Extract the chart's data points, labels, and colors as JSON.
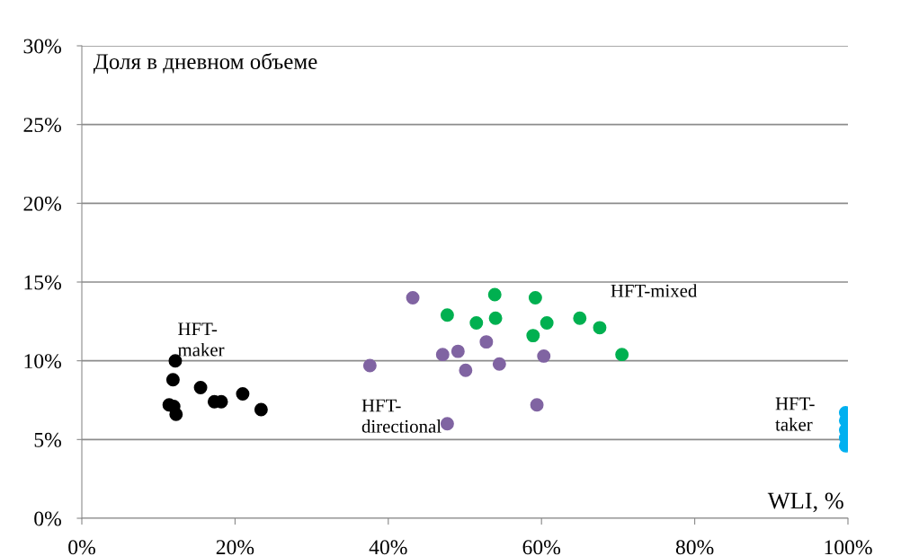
{
  "chart_data": {
    "type": "scatter",
    "ylabel": "Доля в дневном объеме",
    "xlabel": "WLI, %",
    "xlim": [
      0,
      100
    ],
    "xticks": [
      {
        "value": 0,
        "label": "0%"
      },
      {
        "value": 20,
        "label": "20%"
      },
      {
        "value": 40,
        "label": "40%"
      },
      {
        "value": 60,
        "label": "60%"
      },
      {
        "value": 80,
        "label": "80%"
      },
      {
        "value": 100,
        "label": "100%"
      }
    ],
    "ylim": [
      0,
      30
    ],
    "yticks": [
      {
        "value": 0,
        "label": "0%"
      },
      {
        "value": 5,
        "label": "5%"
      },
      {
        "value": 10,
        "label": "10%"
      },
      {
        "value": 15,
        "label": "15%"
      },
      {
        "value": 20,
        "label": "20%"
      },
      {
        "value": 25,
        "label": "25%"
      },
      {
        "value": 30,
        "label": "30%"
      }
    ],
    "grid": "y",
    "marker": "circle",
    "series": [
      {
        "name": "HFT-\nmaker",
        "color": "#000000",
        "x": [
          12.2,
          11.9,
          15.5,
          11.4,
          12.0,
          12.3,
          17.3,
          18.2,
          21.0,
          23.4
        ],
        "values": [
          10.0,
          8.8,
          8.3,
          7.2,
          7.1,
          6.6,
          7.4,
          7.4,
          7.9,
          6.9
        ]
      },
      {
        "name": "HFT-\ndirectional",
        "color": "#8064a2",
        "x": [
          43.2,
          37.6,
          47.1,
          49.1,
          52.8,
          50.1,
          54.5,
          60.3,
          59.4,
          47.7
        ],
        "values": [
          14.0,
          9.7,
          10.4,
          10.6,
          11.2,
          9.4,
          9.8,
          10.3,
          7.2,
          6.0
        ]
      },
      {
        "name": "HFT-mixed",
        "color": "#00b050",
        "x": [
          47.7,
          51.5,
          54.0,
          53.9,
          59.2,
          58.9,
          60.7,
          65.0,
          67.6,
          70.5
        ],
        "values": [
          12.9,
          12.4,
          12.7,
          14.2,
          14.0,
          11.6,
          12.4,
          12.7,
          12.1,
          10.4
        ]
      },
      {
        "name": "HFT-\ntaker",
        "color": "#00b0f0",
        "x": [
          99.7,
          99.7,
          99.7,
          99.7,
          99.7
        ],
        "values": [
          6.7,
          6.2,
          5.6,
          5.1,
          4.6
        ]
      }
    ]
  }
}
